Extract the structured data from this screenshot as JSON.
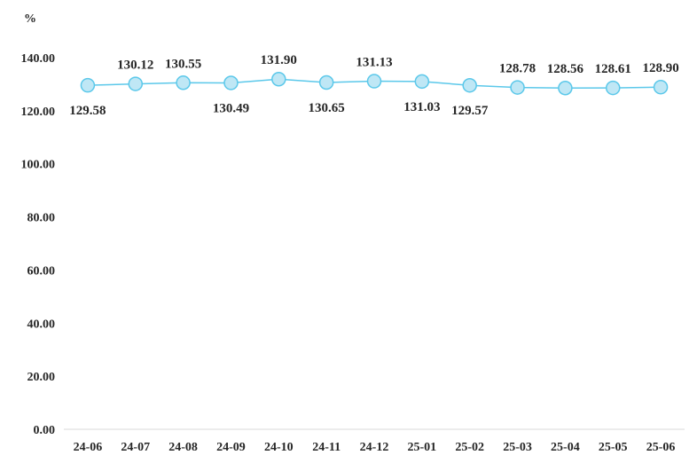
{
  "chart_data": {
    "type": "line",
    "unit_label": "%",
    "categories": [
      "24-06",
      "24-07",
      "24-08",
      "24-09",
      "24-10",
      "24-11",
      "24-12",
      "25-01",
      "25-02",
      "25-03",
      "25-04",
      "25-05",
      "25-06"
    ],
    "series": [
      {
        "values": [
          129.58,
          130.12,
          130.55,
          130.49,
          131.9,
          130.65,
          131.13,
          131.03,
          129.57,
          128.78,
          128.56,
          128.61,
          128.9
        ]
      }
    ],
    "data_labels": [
      "129.58",
      "130.12",
      "130.55",
      "130.49",
      "131.90",
      "130.65",
      "131.13",
      "131.03",
      "129.57",
      "128.78",
      "128.56",
      "128.61",
      "128.90"
    ],
    "y_ticks": [
      "0.00",
      "20.00",
      "40.00",
      "60.00",
      "80.00",
      "100.00",
      "120.00",
      "140.00"
    ],
    "ylim": [
      0,
      140
    ],
    "grid": false,
    "line_color": "#5BC8EA",
    "marker_fill": "#BFE7F5"
  }
}
